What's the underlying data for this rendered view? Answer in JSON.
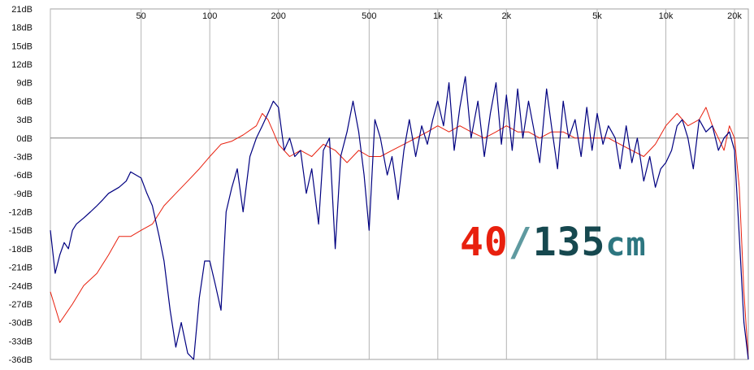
{
  "chart_data": {
    "type": "line",
    "title": "",
    "xlabel": "",
    "ylabel": "",
    "x_scale": "log",
    "xlim": [
      20,
      23000
    ],
    "ylim": [
      -36,
      21
    ],
    "grid": true,
    "x_tick_labels": [
      {
        "value": 50,
        "label": "50"
      },
      {
        "value": 100,
        "label": "100"
      },
      {
        "value": 200,
        "label": "200"
      },
      {
        "value": 500,
        "label": "500"
      },
      {
        "value": 1000,
        "label": "1k"
      },
      {
        "value": 2000,
        "label": "2k"
      },
      {
        "value": 5000,
        "label": "5k"
      },
      {
        "value": 10000,
        "label": "10k"
      },
      {
        "value": 20000,
        "label": "20k"
      }
    ],
    "y_tick_labels": [
      "21dB",
      "18dB",
      "15dB",
      "12dB",
      "9dB",
      "6dB",
      "3dB",
      "0dB",
      "-3dB",
      "-6dB",
      "-9dB",
      "-12dB",
      "-15dB",
      "-18dB",
      "-21dB",
      "-24dB",
      "-27dB",
      "-30dB",
      "-33dB",
      "-36dB"
    ],
    "annotation": {
      "part1": "40",
      "part2": "/",
      "part3": "135",
      "part4": "cm"
    },
    "colors": {
      "series_40": "#e8200e",
      "series_135": "#000080",
      "background": "#ffffff",
      "grid": "#c8c8c8",
      "zero_line": "#808080"
    },
    "series": [
      {
        "color": "#e8200e",
        "x": [
          20,
          22,
          25,
          28,
          32,
          36,
          40,
          45,
          50,
          56,
          63,
          71,
          80,
          90,
          100,
          112,
          125,
          140,
          160,
          170,
          180,
          190,
          200,
          224,
          250,
          280,
          315,
          355,
          400,
          450,
          500,
          560,
          630,
          710,
          800,
          900,
          1000,
          1120,
          1250,
          1400,
          1600,
          1800,
          2000,
          2240,
          2500,
          2800,
          3150,
          3550,
          4000,
          4500,
          5000,
          5600,
          6300,
          7100,
          8000,
          9000,
          10000,
          11200,
          12500,
          14000,
          15000,
          16000,
          17000,
          18000,
          19000,
          20000,
          21000,
          22000,
          23000
        ],
        "y": [
          -25,
          -30,
          -27,
          -24,
          -22,
          -19,
          -16,
          -16,
          -15,
          -14,
          -11,
          -9,
          -7,
          -5,
          -3,
          -1,
          -0.5,
          0.5,
          2,
          4,
          3,
          1,
          -1,
          -3,
          -2,
          -3,
          -1,
          -2,
          -4,
          -2,
          -3,
          -3,
          -2,
          -1,
          0,
          1,
          2,
          1,
          2,
          1,
          0,
          1,
          2,
          1,
          1,
          0,
          1,
          1,
          0,
          0,
          0,
          0,
          -1,
          -2,
          -3,
          -1,
          2,
          4,
          2,
          3,
          5,
          2,
          0,
          -2,
          2,
          0,
          -8,
          -25,
          -36
        ]
      },
      {
        "color": "#000080",
        "x": [
          20,
          21,
          22,
          23,
          24,
          25,
          26,
          28,
          30,
          32,
          34,
          36,
          40,
          43,
          45,
          50,
          53,
          56,
          60,
          63,
          67,
          71,
          75,
          80,
          85,
          90,
          95,
          100,
          106,
          112,
          118,
          125,
          132,
          140,
          150,
          160,
          170,
          180,
          190,
          200,
          212,
          224,
          236,
          250,
          265,
          280,
          300,
          315,
          335,
          355,
          375,
          400,
          425,
          450,
          475,
          500,
          530,
          560,
          600,
          630,
          670,
          710,
          750,
          800,
          850,
          900,
          950,
          1000,
          1060,
          1120,
          1180,
          1250,
          1320,
          1400,
          1500,
          1600,
          1700,
          1800,
          1900,
          2000,
          2120,
          2240,
          2360,
          2500,
          2650,
          2800,
          3000,
          3150,
          3350,
          3550,
          3750,
          4000,
          4250,
          4500,
          4750,
          5000,
          5300,
          5600,
          6000,
          6300,
          6700,
          7100,
          7500,
          8000,
          8500,
          9000,
          9500,
          10000,
          10600,
          11200,
          11800,
          12500,
          13200,
          14000,
          15000,
          16000,
          17000,
          18000,
          19000,
          20000,
          21000,
          22000,
          23000
        ],
        "y": [
          -15,
          -22,
          -19,
          -17,
          -18,
          -15,
          -14,
          -13,
          -12,
          -11,
          -10,
          -9,
          -8,
          -7,
          -5.5,
          -6.5,
          -9,
          -11,
          -16,
          -20,
          -28,
          -34,
          -30,
          -35,
          -36,
          -26,
          -20,
          -20,
          -24,
          -28,
          -12,
          -8,
          -5,
          -12,
          -3,
          0,
          2,
          4,
          6,
          5,
          -2,
          0,
          -3,
          -2,
          -9,
          -5,
          -14,
          -2,
          0,
          -18,
          -3,
          1,
          6,
          1,
          -6,
          -15,
          3,
          0,
          -6,
          -3,
          -10,
          -2,
          3,
          -3,
          2,
          -1,
          3,
          6,
          2,
          9,
          -2,
          5,
          10,
          0,
          6,
          -3,
          4,
          9,
          -1,
          7,
          -2,
          8,
          0,
          6,
          1,
          -4,
          8,
          2,
          -5,
          6,
          0,
          3,
          -3,
          5,
          -2,
          4,
          -1,
          2,
          0,
          -5,
          2,
          -4,
          0,
          -7,
          -3,
          -8,
          -5,
          -4,
          -2,
          2,
          3,
          0,
          -5,
          3,
          1,
          2,
          -2,
          0,
          1,
          -2,
          -16,
          -30,
          -37
        ]
      }
    ]
  }
}
